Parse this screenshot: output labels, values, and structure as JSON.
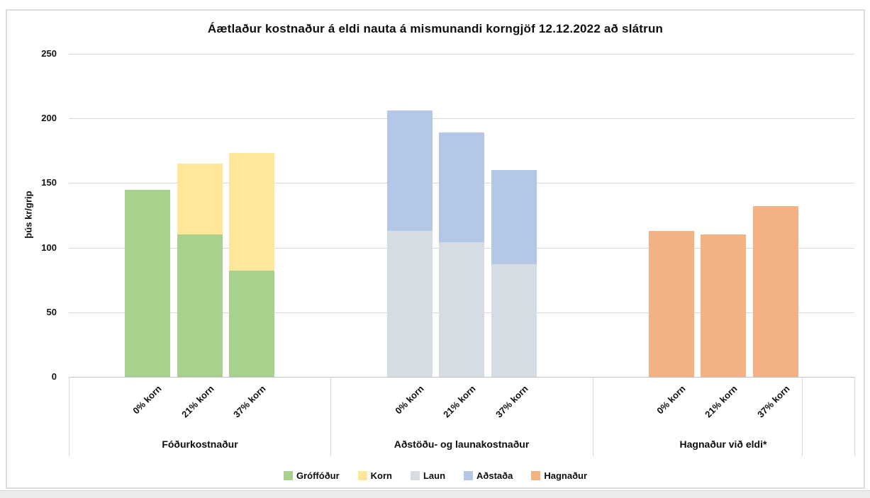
{
  "chart_data": {
    "type": "bar",
    "stacked": true,
    "title": "Áætlaður kostnaður á eldi nauta á mismunandi korngjöf 12.12.2022 að slátrun",
    "ylabel": "þús kr/grip",
    "ylim": [
      0,
      250
    ],
    "yticks": [
      0,
      50,
      100,
      150,
      200,
      250
    ],
    "grid": true,
    "legend_position": "bottom",
    "legend": [
      {
        "name": "Gróffóður",
        "color": "#A9D18E"
      },
      {
        "name": "Korn",
        "color": "#FFE699"
      },
      {
        "name": "Laun",
        "color": "#D6DCE4"
      },
      {
        "name": "Aðstaða",
        "color": "#B4C7E7"
      },
      {
        "name": "Hagnaður",
        "color": "#F4B183"
      }
    ],
    "groups": [
      {
        "label": "Fóðurkostnaður",
        "categories": [
          "0% korn",
          "21% korn",
          "37% korn"
        ],
        "stacks": [
          [
            {
              "series": "Gróffóður",
              "value": 145
            }
          ],
          [
            {
              "series": "Gróffóður",
              "value": 110
            },
            {
              "series": "Korn",
              "value": 55
            }
          ],
          [
            {
              "series": "Gróffóður",
              "value": 82
            },
            {
              "series": "Korn",
              "value": 91
            }
          ]
        ]
      },
      {
        "label": "Aðstöðu- og launakostnaður",
        "categories": [
          "0% korn",
          "21% korn",
          "37% korn"
        ],
        "stacks": [
          [
            {
              "series": "Laun",
              "value": 113
            },
            {
              "series": "Aðstaða",
              "value": 93
            }
          ],
          [
            {
              "series": "Laun",
              "value": 104
            },
            {
              "series": "Aðstaða",
              "value": 85
            }
          ],
          [
            {
              "series": "Laun",
              "value": 87
            },
            {
              "series": "Aðstaða",
              "value": 73
            }
          ]
        ]
      },
      {
        "label": "Hagnaður við eldi*",
        "categories": [
          "0% korn",
          "21% korn",
          "37% korn"
        ],
        "stacks": [
          [
            {
              "series": "Hagnaður",
              "value": 113
            }
          ],
          [
            {
              "series": "Hagnaður",
              "value": 110
            }
          ],
          [
            {
              "series": "Hagnaður",
              "value": 132
            }
          ]
        ]
      }
    ]
  }
}
